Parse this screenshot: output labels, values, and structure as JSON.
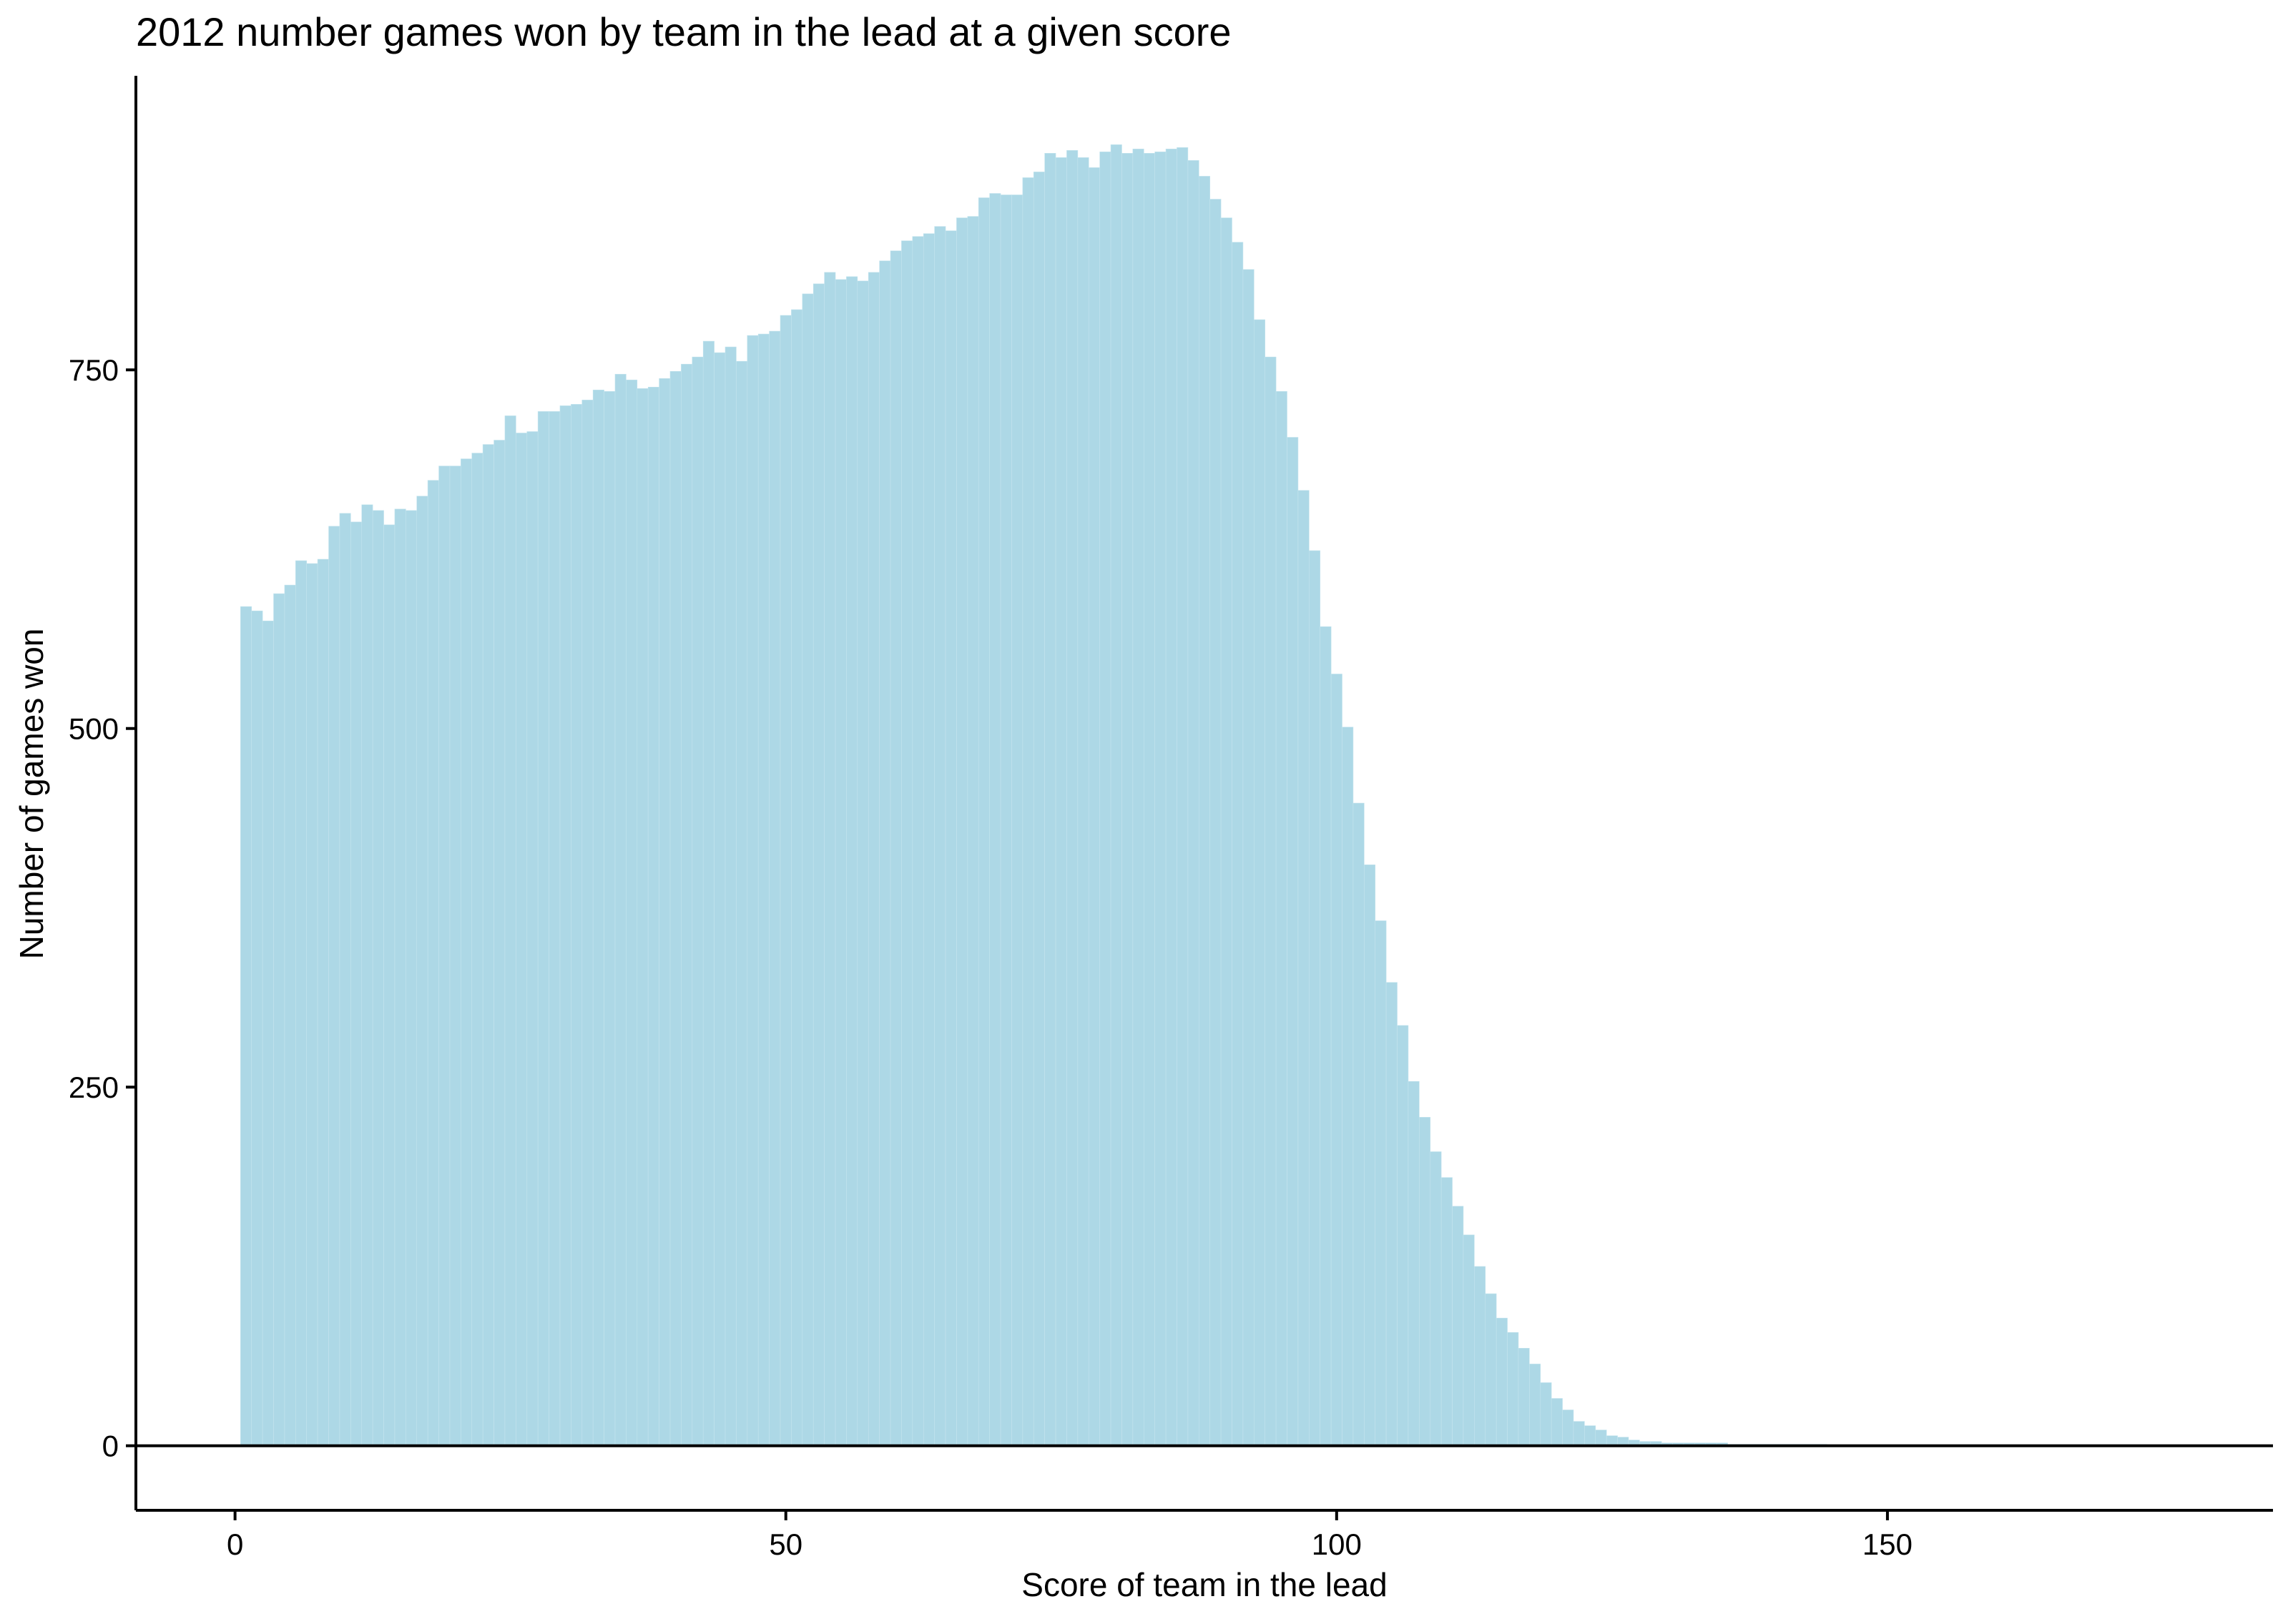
{
  "chart_data": {
    "type": "bar",
    "title": "2012 number games won by team in the lead at a given score",
    "xlabel": "Score of team in the lead",
    "ylabel": "Number of games won",
    "xlim": [
      -9,
      185
    ],
    "ylim": [
      -45,
      955
    ],
    "x_ticks": [
      0,
      50,
      100,
      150
    ],
    "y_ticks": [
      0,
      250,
      500,
      750
    ],
    "grid": false,
    "legend": "none",
    "bar_color": "#ADD8E6",
    "x_start": 1,
    "values": [
      585,
      582,
      575,
      594,
      600,
      617,
      615,
      618,
      641,
      650,
      644,
      656,
      652,
      642,
      653,
      652,
      662,
      673,
      683,
      683,
      688,
      692,
      698,
      701,
      718,
      706,
      707,
      721,
      721,
      725,
      726,
      729,
      736,
      735,
      747,
      743,
      737,
      738,
      744,
      749,
      754,
      759,
      770,
      762,
      766,
      756,
      774,
      775,
      777,
      788,
      792,
      803,
      810,
      818,
      813,
      815,
      812,
      818,
      826,
      833,
      840,
      843,
      845,
      850,
      847,
      856,
      857,
      870,
      873,
      872,
      872,
      884,
      888,
      901,
      898,
      903,
      898,
      891,
      902,
      907,
      901,
      904,
      901,
      902,
      904,
      905,
      896,
      885,
      869,
      856,
      839,
      820,
      785,
      759,
      735,
      703,
      666,
      624,
      571,
      538,
      501,
      448,
      405,
      366,
      323,
      293,
      254,
      229,
      205,
      187,
      167,
      147,
      125,
      106,
      89,
      79,
      68,
      57,
      44,
      33,
      25,
      17,
      14,
      11,
      7,
      6,
      4,
      3,
      3,
      2,
      2,
      2,
      2,
      2,
      2,
      1,
      1,
      1,
      1,
      1,
      1,
      1,
      1,
      1,
      0,
      0,
      0,
      0,
      0,
      0,
      0,
      0,
      0,
      0,
      0,
      0,
      0,
      0,
      0,
      0,
      0,
      0,
      0,
      0,
      0,
      0,
      0,
      0,
      0,
      0,
      0,
      0,
      0,
      0,
      0,
      0,
      0
    ]
  }
}
